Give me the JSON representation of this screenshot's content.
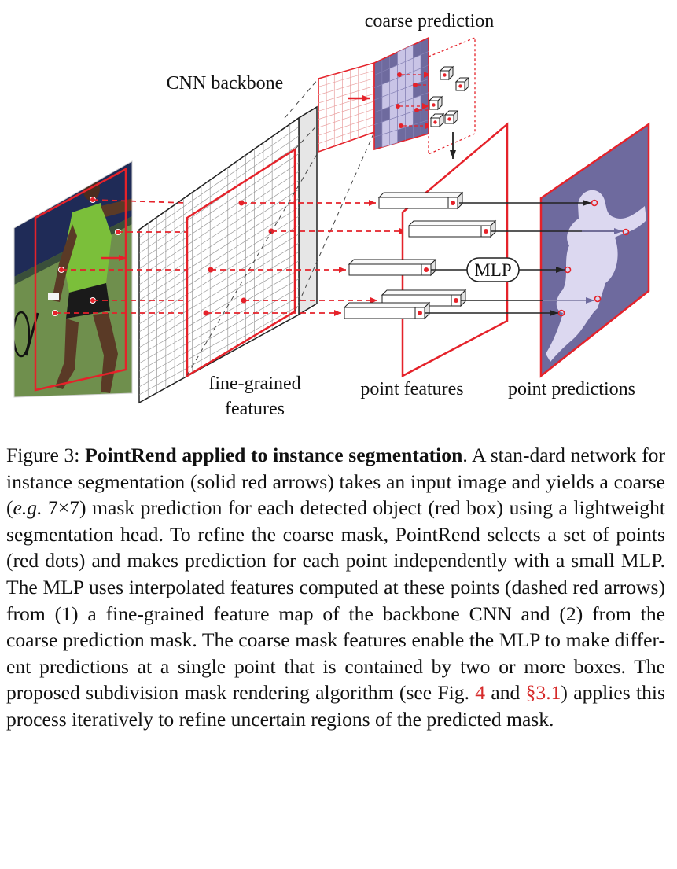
{
  "figure": {
    "labels": {
      "coarse_prediction": "coarse prediction",
      "cnn_backbone": "CNN backbone",
      "fine_grained_line1": "fine-grained",
      "fine_grained_line2": "features",
      "point_features": "point features",
      "point_predictions": "point predictions",
      "mlp": "MLP"
    },
    "colors": {
      "red": "#e5222a",
      "mask_dark": "#6e6a9e",
      "mask_light": "#c9c4e6",
      "court_green": "#6f8f4d",
      "banner_navy": "#1f2b57"
    }
  },
  "caption": {
    "prefix": "Figure 3: ",
    "title": "PointRend applied to instance segmentation",
    "part1": ". A stan-dard network for instance segmentation (solid red arrows) takes an input image and yields a coarse (",
    "eg": "e.g.",
    "part2": " 7×7) mask prediction for each detected object (red box) using a lightweight segmentation head. To refine the coarse mask, PointRend selects a set of points (red dots) and makes prediction for each point independently with a small MLP. The MLP uses interpolated features computed at these points (dashed red arrows) from (1) a fine-grained feature map of the backbone CNN and (2) from the coarse prediction mask. The coarse mask features enable the MLP to make differ-ent predictions at a single point that is contained by two or more boxes. The proposed subdivision mask rendering algorithm (see Fig. ",
    "ref_fig": "4",
    "part3": " and ",
    "ref_sec": "§3.1",
    "part4": ") applies this process iteratively to refine uncertain regions of the predicted mask."
  }
}
